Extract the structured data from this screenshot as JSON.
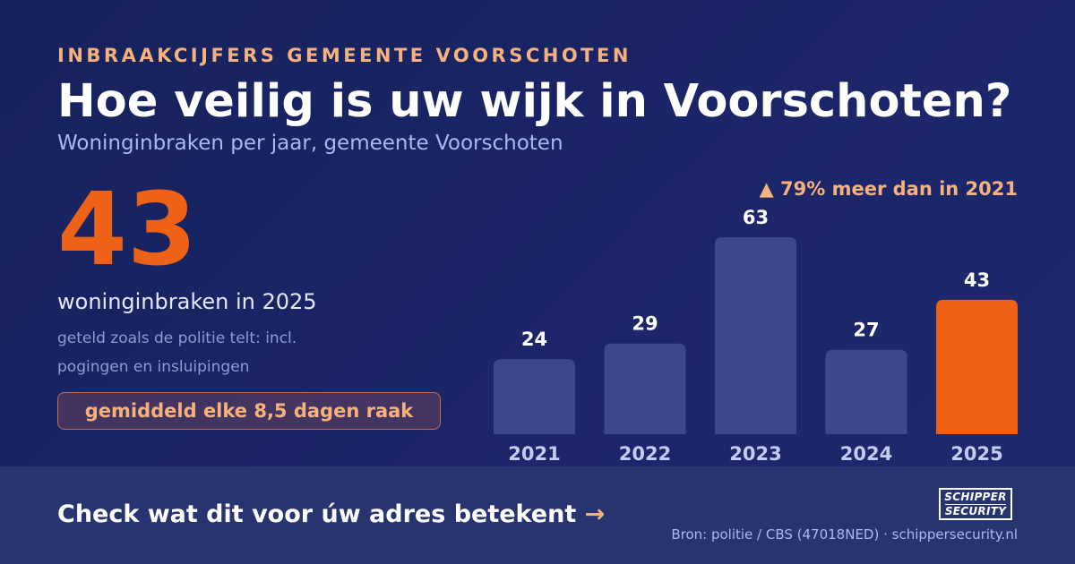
{
  "header": {
    "eyebrow": "INBRAAKCIJFERS GEMEENTE VOORSCHOTEN",
    "title": "Hoe veilig is uw wijk in Voorschoten?",
    "subtitle": "Woninginbraken per jaar, gemeente Voorschoten"
  },
  "stat": {
    "value": "43",
    "caption": "woninginbraken in 2025",
    "note": "geteld zoals de politie telt: incl. pogingen en insluipingen",
    "pill": "gemiddeld elke 8,5 dagen raak"
  },
  "annotation": "▲ 79% meer dan in 2021",
  "footer": {
    "cta": "Check wat dit voor úw adres betekent",
    "cta_arrow": "→",
    "source": "Bron: politie / CBS (47018NED) · schippersecurity.nl"
  },
  "logo": {
    "line1": "SCHIPPER",
    "line2": "SECURITY"
  },
  "chart_data": {
    "type": "bar",
    "categories": [
      "2021",
      "2022",
      "2023",
      "2024",
      "2025"
    ],
    "values": [
      24,
      29,
      63,
      27,
      43
    ],
    "highlight_index": 4,
    "ylim": [
      0,
      63
    ],
    "grid": false,
    "colors": {
      "bar": "#3b4889",
      "highlight": "#ee6218",
      "value_label": "#ffffff",
      "category_label": "#c3cdf4"
    }
  }
}
